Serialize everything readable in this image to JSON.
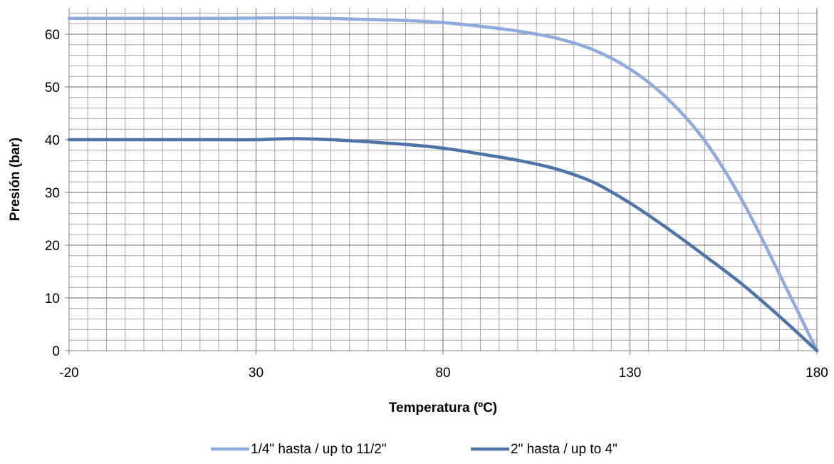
{
  "chart_data": {
    "type": "line",
    "xlabel": "Temperatura (ºC)",
    "ylabel": "Presión (bar)",
    "xlim": [
      -20,
      180
    ],
    "ylim": [
      0,
      65
    ],
    "x_major_ticks": [
      -20,
      30,
      80,
      130,
      180
    ],
    "y_major_ticks": [
      0,
      10,
      20,
      30,
      40,
      50,
      60
    ],
    "x_minor_step": 5,
    "y_minor_step": 2,
    "grid": true,
    "legend_position": "bottom",
    "series": [
      {
        "name": "1/4\" hasta / up to 11/2\"",
        "color": "#8FAADC",
        "points": [
          [
            -20,
            63
          ],
          [
            0,
            63
          ],
          [
            20,
            63
          ],
          [
            40,
            63.1
          ],
          [
            60,
            62.8
          ],
          [
            70,
            62.6
          ],
          [
            80,
            62.2
          ],
          [
            90,
            61.5
          ],
          [
            100,
            60.6
          ],
          [
            110,
            59.3
          ],
          [
            120,
            57.1
          ],
          [
            130,
            53.4
          ],
          [
            140,
            47.8
          ],
          [
            150,
            39.8
          ],
          [
            160,
            28.5
          ],
          [
            170,
            14.5
          ],
          [
            180,
            0
          ]
        ]
      },
      {
        "name": "2\" hasta / up to 4\"",
        "color": "#4E74A8",
        "points": [
          [
            -20,
            40
          ],
          [
            0,
            40
          ],
          [
            20,
            40
          ],
          [
            30,
            40
          ],
          [
            40,
            40.2
          ],
          [
            50,
            40
          ],
          [
            60,
            39.6
          ],
          [
            70,
            39.1
          ],
          [
            80,
            38.4
          ],
          [
            90,
            37.3
          ],
          [
            100,
            36.1
          ],
          [
            110,
            34.5
          ],
          [
            120,
            32
          ],
          [
            130,
            28
          ],
          [
            140,
            23.2
          ],
          [
            150,
            18
          ],
          [
            160,
            12.6
          ],
          [
            170,
            6.5
          ],
          [
            180,
            0
          ]
        ]
      }
    ]
  }
}
